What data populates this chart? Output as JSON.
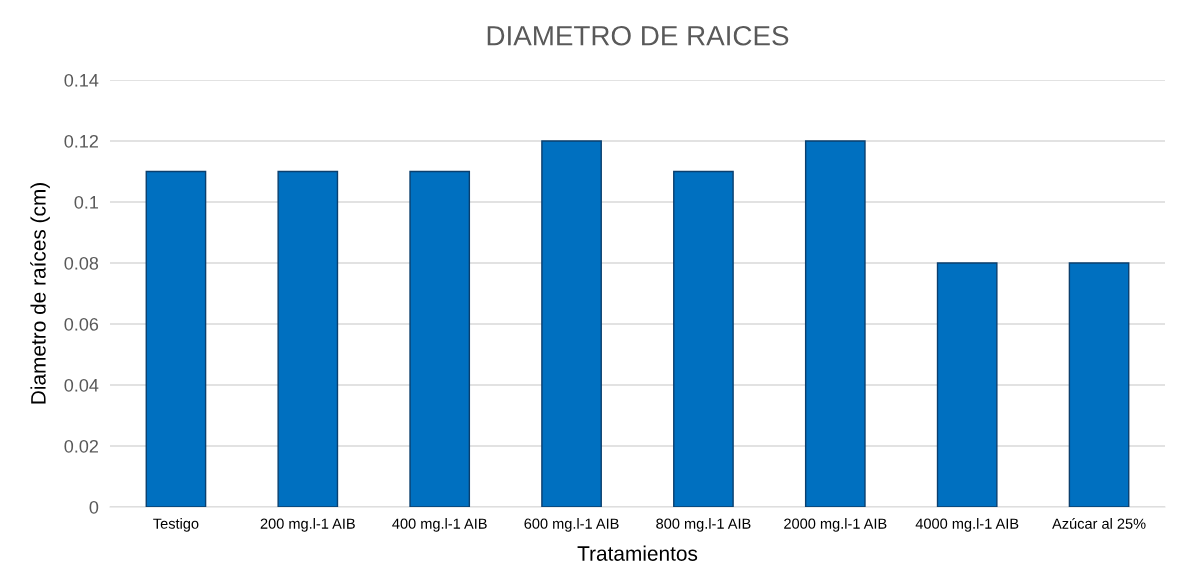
{
  "chart_data": {
    "type": "bar",
    "title": "DIAMETRO DE RAICES",
    "xlabel": "Tratamientos",
    "ylabel": "Diametro de raíces (cm)",
    "categories": [
      "Testigo",
      "200 mg.l-1 AIB",
      "400 mg.l-1 AIB",
      "600 mg.l-1 AIB",
      "800 mg.l-1 AIB",
      "2000 mg.l-1 AIB",
      "4000 mg.l-1 AIB",
      "Azúcar al 25%"
    ],
    "values": [
      0.11,
      0.11,
      0.11,
      0.12,
      0.11,
      0.12,
      0.08,
      0.08
    ],
    "color": "#0070c0",
    "ylim": [
      0,
      0.14
    ],
    "yticks": [
      {
        "value": 0,
        "label": "0"
      },
      {
        "value": 0.02,
        "label": "0.02"
      },
      {
        "value": 0.04,
        "label": "0.04"
      },
      {
        "value": 0.06,
        "label": "0.06"
      },
      {
        "value": 0.08,
        "label": "0.08"
      },
      {
        "value": 0.1,
        "label": "0.1"
      },
      {
        "value": 0.12,
        "label": "0.12"
      },
      {
        "value": 0.14,
        "label": "0.14"
      }
    ],
    "grid": "y"
  }
}
